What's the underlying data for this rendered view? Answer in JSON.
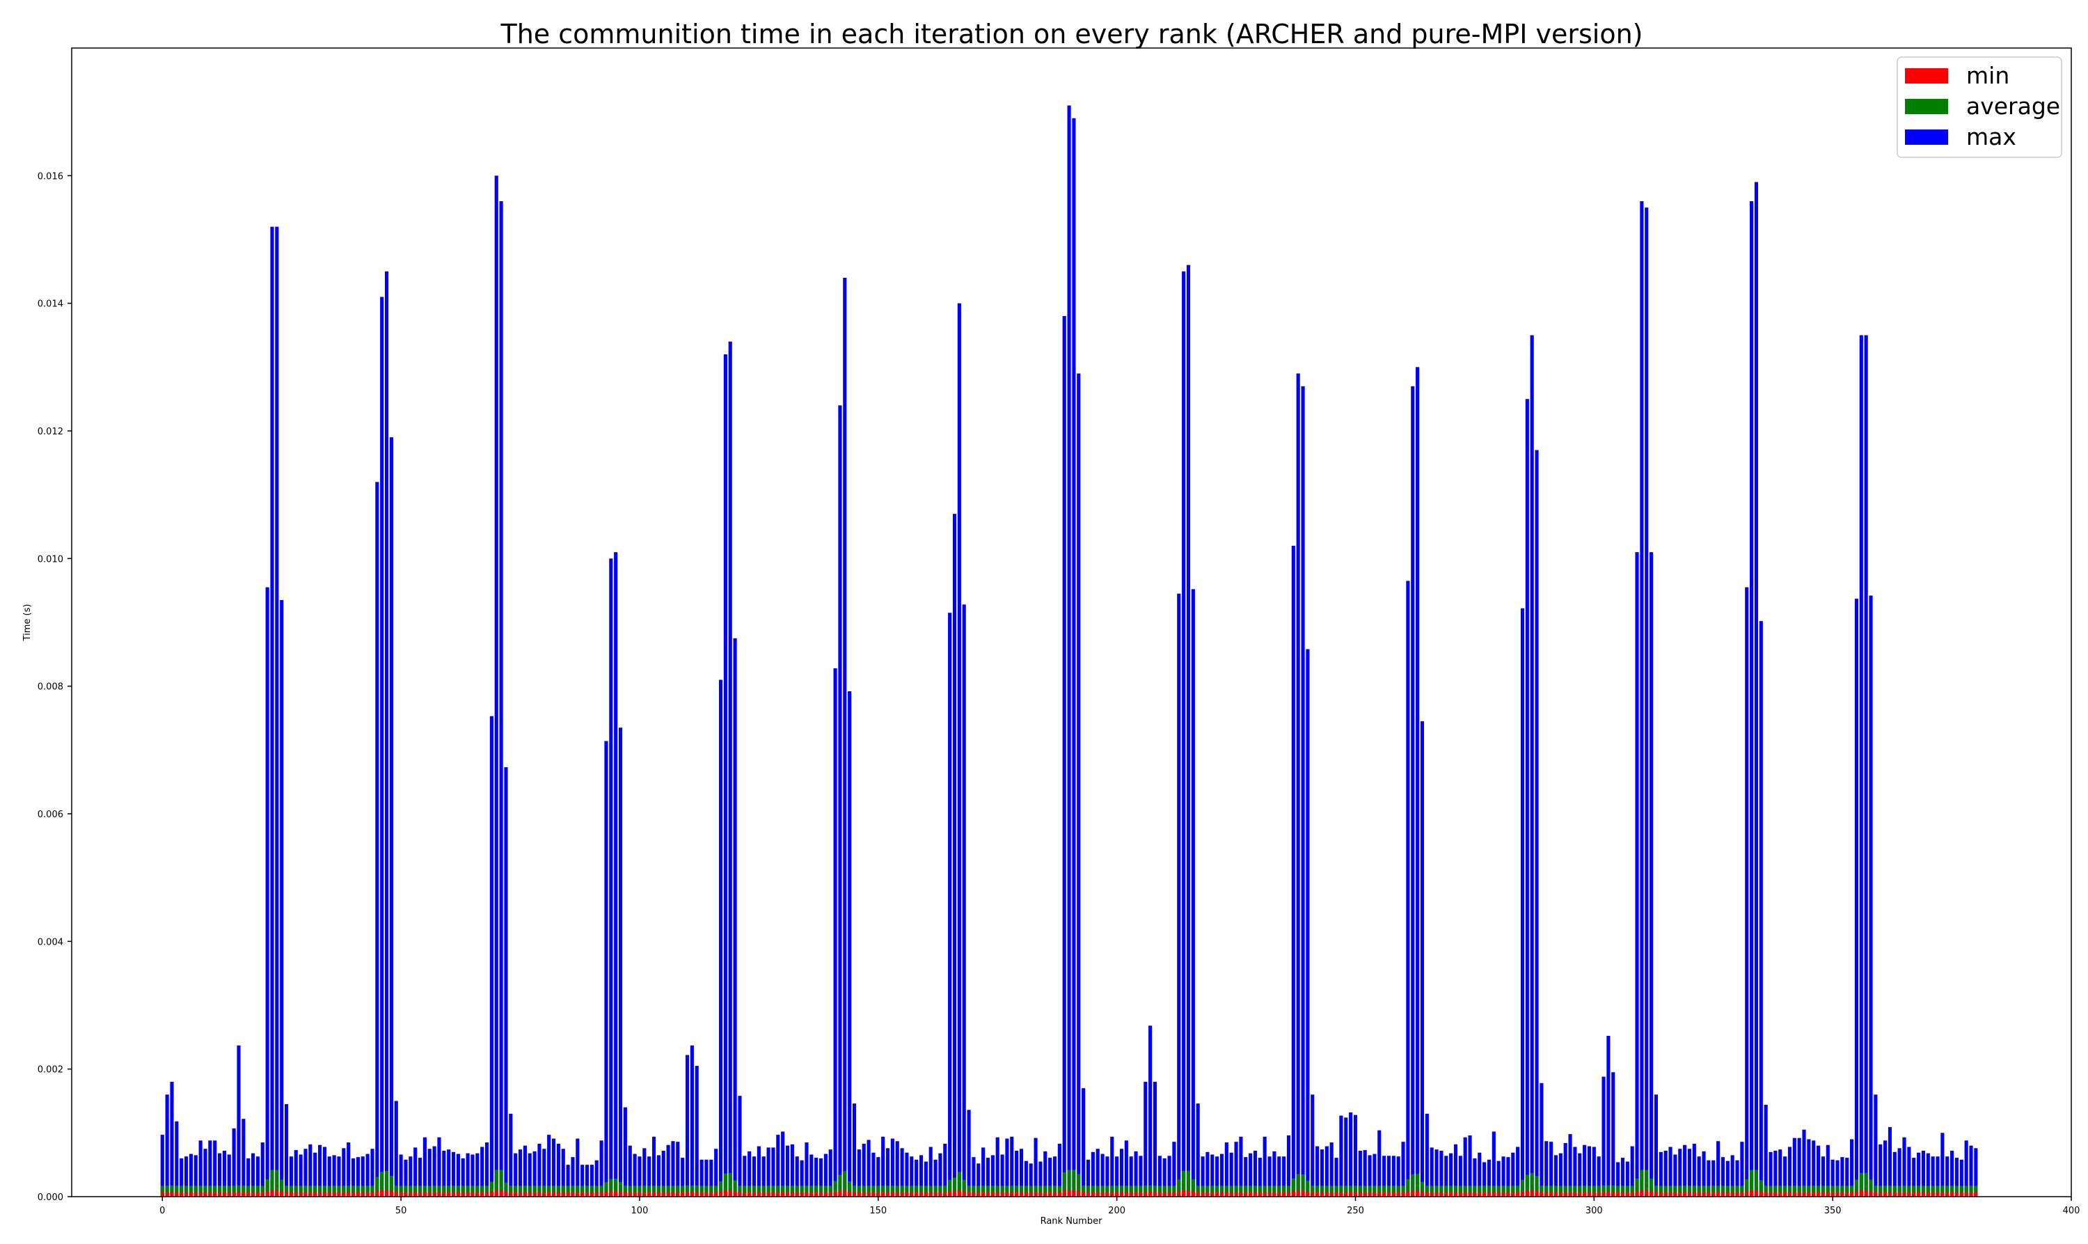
{
  "chart_data": {
    "type": "bar",
    "title": "The communition time in each iteration on every rank (ARCHER and pure-MPI version)",
    "xlabel": "Rank Number",
    "ylabel": "Time (s)",
    "xlim": [
      -19,
      400
    ],
    "ylim": [
      0,
      0.018
    ],
    "xticks": [
      0,
      50,
      100,
      150,
      200,
      250,
      300,
      350,
      400
    ],
    "yticks": [
      0.0,
      0.002,
      0.004,
      0.006,
      0.008,
      0.01,
      0.012,
      0.014,
      0.016
    ],
    "ytick_labels": [
      "0.000",
      "0.002",
      "0.004",
      "0.006",
      "0.008",
      "0.010",
      "0.012",
      "0.014",
      "0.016"
    ],
    "grid": false,
    "legend": "top-right",
    "x_start": 0,
    "series": [
      {
        "name": "max",
        "color": "#0000ff",
        "values": [
          0.00097,
          0.0016,
          0.0018,
          0.00118,
          0.0006,
          0.00063,
          0.00067,
          0.00065,
          0.00088,
          0.00075,
          0.00088,
          0.00088,
          0.00068,
          0.00072,
          0.00066,
          0.00107,
          0.00237,
          0.00122,
          0.0006,
          0.00068,
          0.00063,
          0.00085,
          0.00955,
          0.0152,
          0.0152,
          0.00935,
          0.00145,
          0.00063,
          0.00073,
          0.00066,
          0.00075,
          0.00082,
          0.00069,
          0.00081,
          0.00078,
          0.00063,
          0.00065,
          0.00063,
          0.00076,
          0.00085,
          0.0006,
          0.00062,
          0.00063,
          0.00067,
          0.00075,
          0.0112,
          0.0141,
          0.0145,
          0.0119,
          0.0015,
          0.00066,
          0.00058,
          0.00063,
          0.00077,
          0.00061,
          0.00093,
          0.00075,
          0.00079,
          0.00093,
          0.00072,
          0.00074,
          0.0007,
          0.00067,
          0.0006,
          0.00068,
          0.00066,
          0.00068,
          0.00078,
          0.00085,
          0.00753,
          0.016,
          0.0156,
          0.00673,
          0.0013,
          0.00068,
          0.00074,
          0.0008,
          0.00068,
          0.00071,
          0.00083,
          0.00075,
          0.00097,
          0.00091,
          0.00083,
          0.00075,
          0.0005,
          0.00062,
          0.00091,
          0.0005,
          0.0005,
          0.0005,
          0.00057,
          0.00088,
          0.00714,
          0.01,
          0.0101,
          0.00735,
          0.0014,
          0.0008,
          0.00067,
          0.00063,
          0.00076,
          0.00063,
          0.00094,
          0.00065,
          0.00072,
          0.00081,
          0.00087,
          0.00086,
          0.00061,
          0.00222,
          0.00237,
          0.00205,
          0.00058,
          0.00058,
          0.00058,
          0.00075,
          0.0081,
          0.0132,
          0.0134,
          0.00875,
          0.00158,
          0.00064,
          0.00071,
          0.00063,
          0.00079,
          0.00063,
          0.00077,
          0.00077,
          0.00097,
          0.00102,
          0.0008,
          0.00082,
          0.00063,
          0.00057,
          0.00085,
          0.00066,
          0.00061,
          0.0006,
          0.00067,
          0.00074,
          0.00828,
          0.0124,
          0.0144,
          0.00792,
          0.00146,
          0.00074,
          0.00083,
          0.00089,
          0.00069,
          0.00062,
          0.00094,
          0.00076,
          0.00091,
          0.00087,
          0.00076,
          0.00069,
          0.00063,
          0.00058,
          0.00065,
          0.00055,
          0.00078,
          0.00058,
          0.00068,
          0.00083,
          0.00915,
          0.0107,
          0.014,
          0.00928,
          0.00136,
          0.00062,
          0.00052,
          0.00077,
          0.00061,
          0.00065,
          0.00093,
          0.00066,
          0.00091,
          0.00094,
          0.00072,
          0.00075,
          0.00056,
          0.00052,
          0.00092,
          0.00055,
          0.00071,
          0.00061,
          0.00063,
          0.00083,
          0.0138,
          0.0171,
          0.0169,
          0.0129,
          0.0017,
          0.00058,
          0.0007,
          0.00075,
          0.00067,
          0.00063,
          0.00094,
          0.00063,
          0.00075,
          0.00088,
          0.00063,
          0.00071,
          0.00064,
          0.0018,
          0.00268,
          0.0018,
          0.00064,
          0.0006,
          0.00064,
          0.00086,
          0.00945,
          0.0145,
          0.0146,
          0.00952,
          0.00146,
          0.00063,
          0.0007,
          0.00066,
          0.00063,
          0.00067,
          0.00085,
          0.00069,
          0.00086,
          0.00094,
          0.00062,
          0.00068,
          0.00072,
          0.00061,
          0.00094,
          0.00063,
          0.00071,
          0.00063,
          0.00063,
          0.00096,
          0.0102,
          0.0129,
          0.0127,
          0.00858,
          0.0016,
          0.00079,
          0.00074,
          0.00079,
          0.00085,
          0.00061,
          0.00127,
          0.00124,
          0.00132,
          0.00128,
          0.00072,
          0.00073,
          0.00065,
          0.00067,
          0.00104,
          0.00064,
          0.00064,
          0.00064,
          0.00063,
          0.00086,
          0.00965,
          0.0127,
          0.013,
          0.00745,
          0.0013,
          0.00077,
          0.00074,
          0.00072,
          0.00064,
          0.00068,
          0.00082,
          0.00064,
          0.00093,
          0.00096,
          0.0006,
          0.00069,
          0.00054,
          0.00058,
          0.00102,
          0.00056,
          0.00063,
          0.00062,
          0.00069,
          0.00078,
          0.00922,
          0.0125,
          0.0135,
          0.0117,
          0.00178,
          0.00087,
          0.00086,
          0.00065,
          0.00068,
          0.00084,
          0.00098,
          0.00078,
          0.00068,
          0.00081,
          0.00079,
          0.00078,
          0.00063,
          0.00188,
          0.00252,
          0.00195,
          0.00054,
          0.00061,
          0.00055,
          0.00079,
          0.0101,
          0.0156,
          0.0155,
          0.0101,
          0.0016,
          0.0007,
          0.00072,
          0.00078,
          0.00066,
          0.00075,
          0.00081,
          0.00075,
          0.00083,
          0.00063,
          0.00071,
          0.00057,
          0.00057,
          0.00087,
          0.00062,
          0.00056,
          0.00065,
          0.00057,
          0.00086,
          0.00955,
          0.0156,
          0.0159,
          0.00902,
          0.00144,
          0.0007,
          0.00072,
          0.00074,
          0.00063,
          0.00078,
          0.00092,
          0.00092,
          0.00105,
          0.0009,
          0.00088,
          0.0008,
          0.00063,
          0.00081,
          0.00058,
          0.00057,
          0.00062,
          0.00061,
          0.0009,
          0.00937,
          0.0135,
          0.0135,
          0.00942,
          0.0016,
          0.00082,
          0.00088,
          0.00109,
          0.0007,
          0.00076,
          0.00093,
          0.00078,
          0.00061,
          0.00069,
          0.00072,
          0.00068,
          0.00063,
          0.00063,
          0.001,
          0.00063,
          0.00072,
          0.00061,
          0.00058,
          0.00088,
          0.0008,
          0.00076
        ]
      }
    ],
    "series_average": {
      "name": "average",
      "color": "#008000",
      "base": 0.00017,
      "peak": 0.00042
    },
    "series_min": {
      "name": "min",
      "color": "#ff0000",
      "base": 7e-05,
      "peak": 0.0001
    }
  },
  "legend_items": [
    {
      "label": "min",
      "color": "#ff0000"
    },
    {
      "label": "average",
      "color": "#008000"
    },
    {
      "label": "max",
      "color": "#0000ff"
    }
  ]
}
